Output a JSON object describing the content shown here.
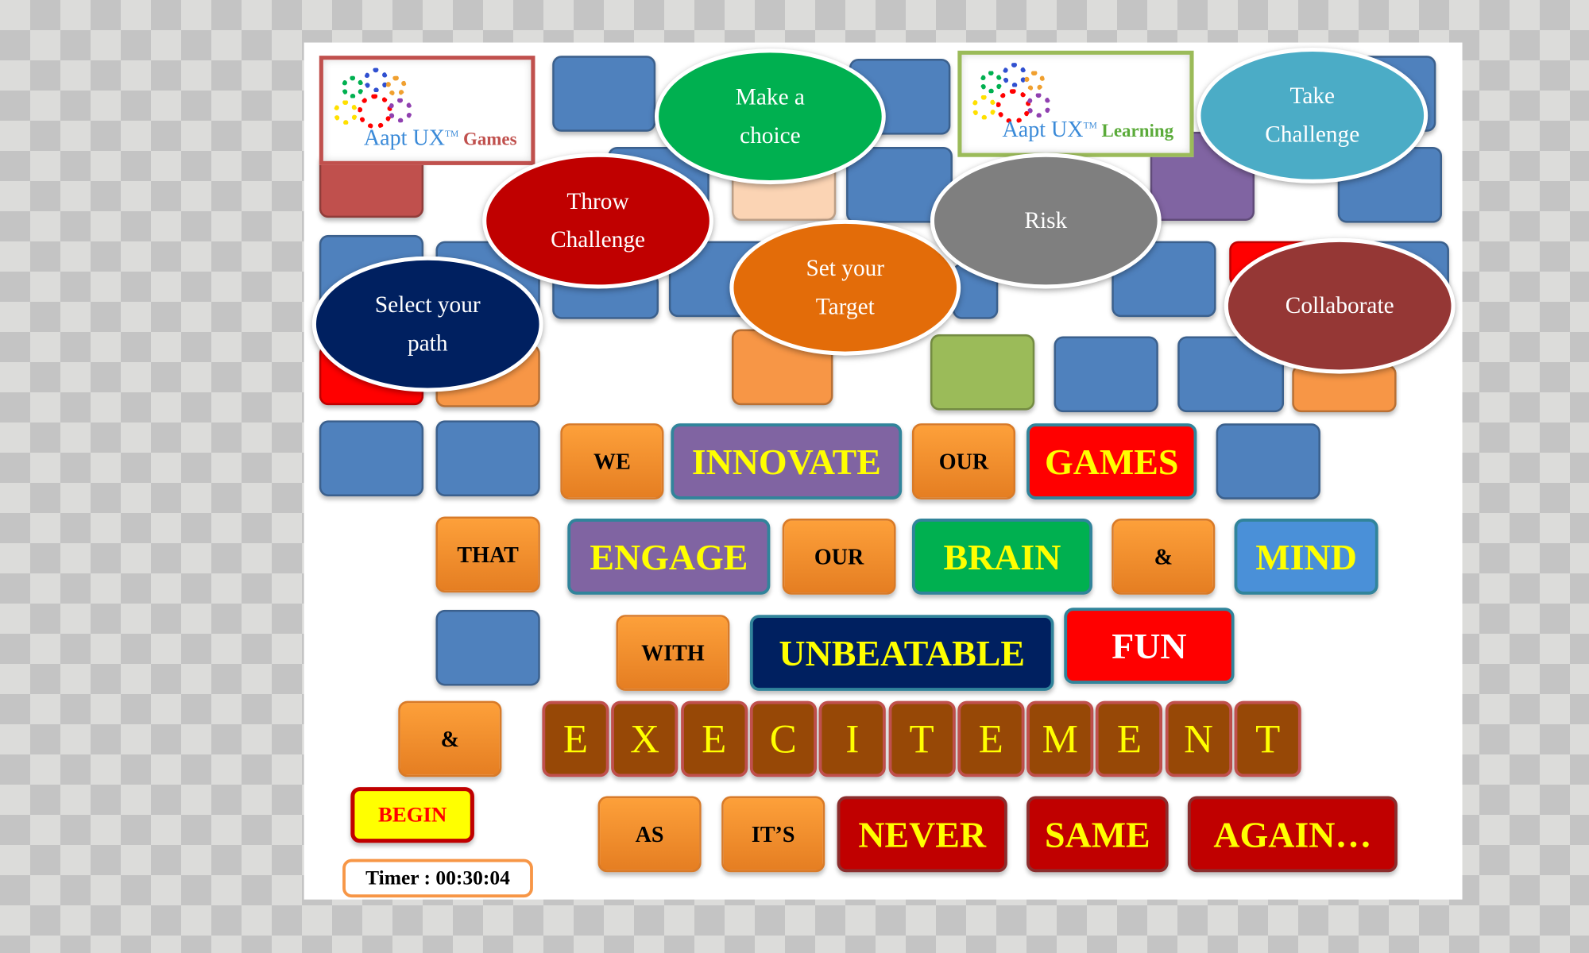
{
  "logos": {
    "games": {
      "brand": "Aapt UX",
      "tm": "TM",
      "product": "Games"
    },
    "learning": {
      "brand": "Aapt UX",
      "tm": "TM",
      "product": "Learning"
    }
  },
  "bubbles": [
    {
      "label": "Make a\nchoice",
      "color": "#00b050"
    },
    {
      "label": "Throw\nChallenge",
      "color": "#c00000"
    },
    {
      "label": "Select your\npath",
      "color": "#002060"
    },
    {
      "label": "Set your\nTarget",
      "color": "#e36c09"
    },
    {
      "label": "Risk",
      "color": "#7f7f7f"
    },
    {
      "label": "Take\nChallenge",
      "color": "#4bacc6"
    },
    {
      "label": "Collaborate",
      "color": "#953735"
    }
  ],
  "tiles": [
    {
      "label": "WE"
    },
    {
      "label": "INNOVATE"
    },
    {
      "label": "OUR"
    },
    {
      "label": "GAMES"
    },
    {
      "label": "THAT"
    },
    {
      "label": "ENGAGE"
    },
    {
      "label": "OUR"
    },
    {
      "label": "BRAIN"
    },
    {
      "label": "&"
    },
    {
      "label": "MIND"
    },
    {
      "label": "WITH"
    },
    {
      "label": "UNBEATABLE"
    },
    {
      "label": "FUN"
    },
    {
      "label": "&"
    },
    {
      "label": "AS"
    },
    {
      "label": "IT’S"
    },
    {
      "label": "NEVER"
    },
    {
      "label": "SAME"
    },
    {
      "label": "AGAIN…"
    }
  ],
  "excitement_letters": [
    "E",
    "X",
    "E",
    "C",
    "I",
    "T",
    "E",
    "M",
    "E",
    "N",
    "T"
  ],
  "begin_button": "BEGIN",
  "timer": "Timer : 00:30:04"
}
